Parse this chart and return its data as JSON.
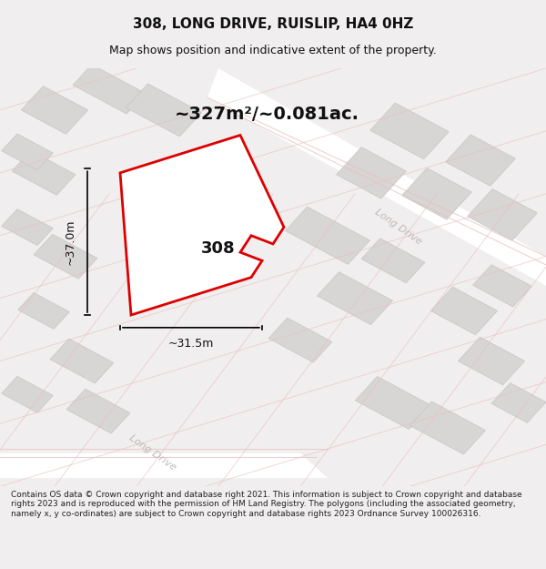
{
  "title": "308, LONG DRIVE, RUISLIP, HA4 0HZ",
  "subtitle": "Map shows position and indicative extent of the property.",
  "area_text": "~327m²/~0.081ac.",
  "label_308": "308",
  "dim_width": "~31.5m",
  "dim_height": "~37.0m",
  "road_label": "Long Drive",
  "footer": "Contains OS data © Crown copyright and database right 2021. This information is subject to Crown copyright and database rights 2023 and is reproduced with the permission of HM Land Registry. The polygons (including the associated geometry, namely x, y co-ordinates) are subject to Crown copyright and database rights 2023 Ordnance Survey 100026316.",
  "bg_color": "#f0eeee",
  "map_bg": "#f5f3f3",
  "building_fill": "#d8d5d5",
  "building_edge": "#c8c4c4",
  "road_color": "#ffffff",
  "road_line_color": "#e8c0c0",
  "highlight_fill": "#ffffff",
  "highlight_edge": "#dd0000",
  "dim_color": "#111111",
  "title_color": "#111111",
  "area_color": "#111111",
  "road_label_color": "#c0b8b8"
}
